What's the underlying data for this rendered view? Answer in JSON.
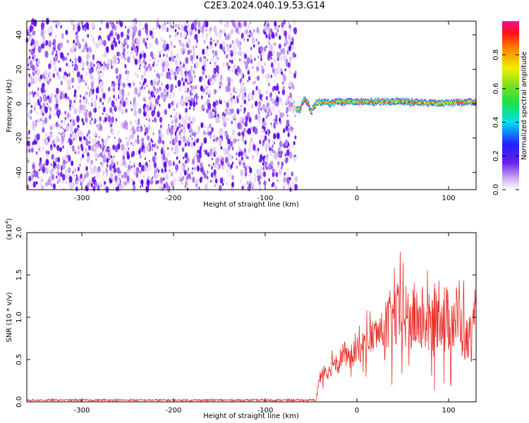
{
  "title": "C2E3.2024.040.19.53.G14",
  "chart_data": [
    {
      "type": "heatmap",
      "xlabel": "Height of straight line (km)",
      "ylabel": "Frequency (Hz)",
      "xlim": [
        -360,
        130
      ],
      "ylim": [
        -50,
        48
      ],
      "xticks": [
        -300,
        -200,
        -100,
        0,
        100
      ],
      "yticks": [
        -40,
        -20,
        0,
        20,
        40
      ],
      "noise_region_x": [
        -360,
        -66
      ],
      "signal_track": [
        {
          "x": -66,
          "y": -3
        },
        {
          "x": -62,
          "y": -4
        },
        {
          "x": -58,
          "y": 2
        },
        {
          "x": -54,
          "y": 1
        },
        {
          "x": -50,
          "y": -5
        },
        {
          "x": -45,
          "y": 0
        },
        {
          "x": -40,
          "y": 1
        },
        {
          "x": -30,
          "y": 0
        },
        {
          "x": -20,
          "y": 1
        },
        {
          "x": 0,
          "y": 1
        },
        {
          "x": 30,
          "y": 1
        },
        {
          "x": 60,
          "y": 1
        },
        {
          "x": 90,
          "y": 0
        },
        {
          "x": 130,
          "y": 1
        }
      ],
      "colorbar": {
        "label": "Normalized spectral amplitude",
        "range": [
          0,
          1
        ],
        "ticks": [
          "0.0",
          "0.2",
          "0.4",
          "0.6",
          "0.8"
        ]
      }
    },
    {
      "type": "line",
      "xlabel": "Height of straight line (km)",
      "ylabel": "SNR (10 * v/v)",
      "y_multiplier": "(x10",
      "y_multiplier_exp": "4",
      "y_multiplier_close": ")",
      "xlim": [
        -360,
        130
      ],
      "ylim": [
        0,
        2.0
      ],
      "xticks": [
        -300,
        -200,
        -100,
        0,
        100
      ],
      "yticks": [
        "0.0",
        "0.5",
        "1.0",
        "1.5",
        "2.0"
      ],
      "line_color": "#e8312c",
      "series": [
        {
          "x": [
            -360,
            -300,
            -200,
            -100,
            -50,
            -44,
            -40,
            -35,
            -30,
            -25,
            -20,
            -15,
            -10,
            -5,
            0,
            10,
            20,
            30,
            40,
            50,
            60,
            70,
            80,
            90,
            100,
            110,
            120,
            130
          ],
          "y": [
            0.01,
            0.01,
            0.01,
            0.01,
            0.01,
            0.1,
            0.3,
            0.4,
            0.35,
            0.5,
            0.45,
            0.6,
            0.5,
            0.55,
            0.6,
            0.7,
            0.8,
            0.85,
            1.0,
            1.0,
            0.95,
            1.0,
            0.9,
            1.1,
            0.95,
            1.0,
            0.7,
            0.9
          ]
        }
      ]
    }
  ]
}
